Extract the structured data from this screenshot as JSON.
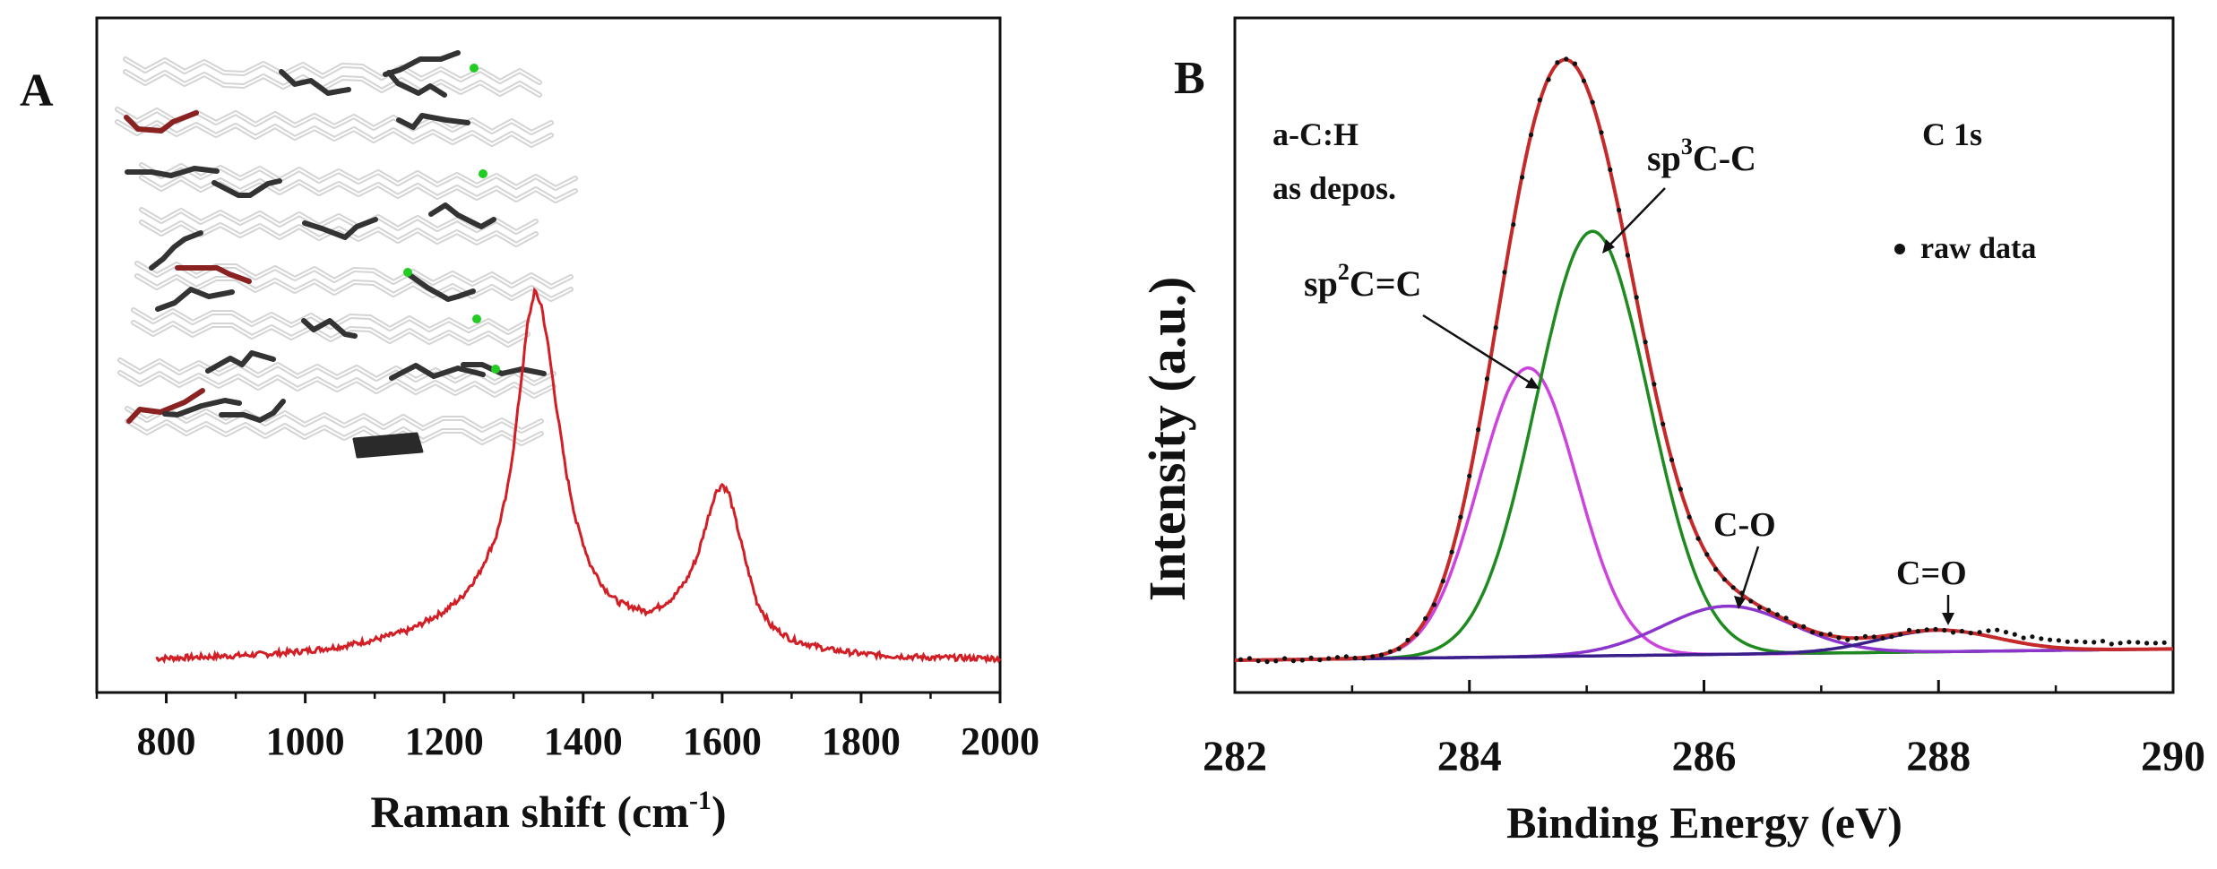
{
  "colors": {
    "raman": "#d21f26",
    "envelope": "#c42a2a",
    "sp2": "#cc44dd",
    "sp3": "#1f8a1f",
    "co": "#8b35cc",
    "c_eq_o": "#3a1e8a",
    "baseline": "#1a2a6a",
    "raw": "#111111",
    "molecule_light": "#d4d4d4",
    "molecule_dark": "#333333",
    "molecule_red": "#8a2222",
    "molecule_green": "#22cc22"
  },
  "chart_data": [
    {
      "type": "line",
      "panel_label": "A",
      "xlabel": "Raman shift (cm",
      "xlabel_sup": "-1",
      "xlabel_end": ")",
      "ylabel": "",
      "xlim": [
        700,
        2000
      ],
      "ylim": [
        0,
        1
      ],
      "xticks": [
        800,
        1000,
        1200,
        1400,
        1600,
        1800,
        2000
      ],
      "series": [
        {
          "name": "Raman spectrum",
          "x": [
            785,
            850,
            900,
            950,
            1000,
            1050,
            1100,
            1150,
            1200,
            1225,
            1250,
            1275,
            1290,
            1300,
            1310,
            1320,
            1330,
            1340,
            1350,
            1360,
            1375,
            1390,
            1410,
            1430,
            1450,
            1470,
            1490,
            1510,
            1530,
            1550,
            1565,
            1580,
            1590,
            1600,
            1610,
            1620,
            1635,
            1650,
            1670,
            1700,
            1750,
            1800,
            1850,
            1900,
            1950,
            2000
          ],
          "y": [
            0.0,
            0.003,
            0.006,
            0.01,
            0.016,
            0.025,
            0.04,
            0.06,
            0.1,
            0.13,
            0.18,
            0.26,
            0.35,
            0.45,
            0.58,
            0.71,
            0.78,
            0.75,
            0.66,
            0.55,
            0.4,
            0.29,
            0.2,
            0.15,
            0.12,
            0.11,
            0.1,
            0.11,
            0.13,
            0.17,
            0.22,
            0.3,
            0.35,
            0.37,
            0.35,
            0.29,
            0.2,
            0.12,
            0.07,
            0.04,
            0.02,
            0.01,
            0.005,
            0.002,
            0.001,
            0.0
          ]
        }
      ]
    },
    {
      "type": "line",
      "panel_label": "B",
      "xlabel": "Binding Energy (eV)",
      "ylabel": "Intensity (a.u.)",
      "xlim": [
        282,
        290
      ],
      "ylim": [
        0,
        1
      ],
      "xticks": [
        282,
        284,
        286,
        288,
        290
      ],
      "annotations": {
        "sample_line1": "a-C:H",
        "sample_line2": "as depos.",
        "core_level": "C 1s",
        "legend_raw": "raw data",
        "sp2_pre": "sp",
        "sp2_sup": "2",
        "sp2_post": "C=C",
        "sp3_pre": "sp",
        "sp3_sup": "3",
        "sp3_post": "C-C",
        "co": "C-O",
        "c_eq_o": "C=O"
      },
      "components": [
        {
          "name": "sp2 C=C",
          "center": 284.5,
          "height": 0.51,
          "sigma": 0.42
        },
        {
          "name": "sp3 C-C",
          "center": 285.05,
          "height": 0.75,
          "sigma": 0.48
        },
        {
          "name": "C-O",
          "center": 286.2,
          "height": 0.085,
          "sigma": 0.55
        },
        {
          "name": "C=O",
          "center": 288.0,
          "height": 0.038,
          "sigma": 0.5
        }
      ],
      "baseline": [
        0.0,
        0.02
      ]
    }
  ]
}
